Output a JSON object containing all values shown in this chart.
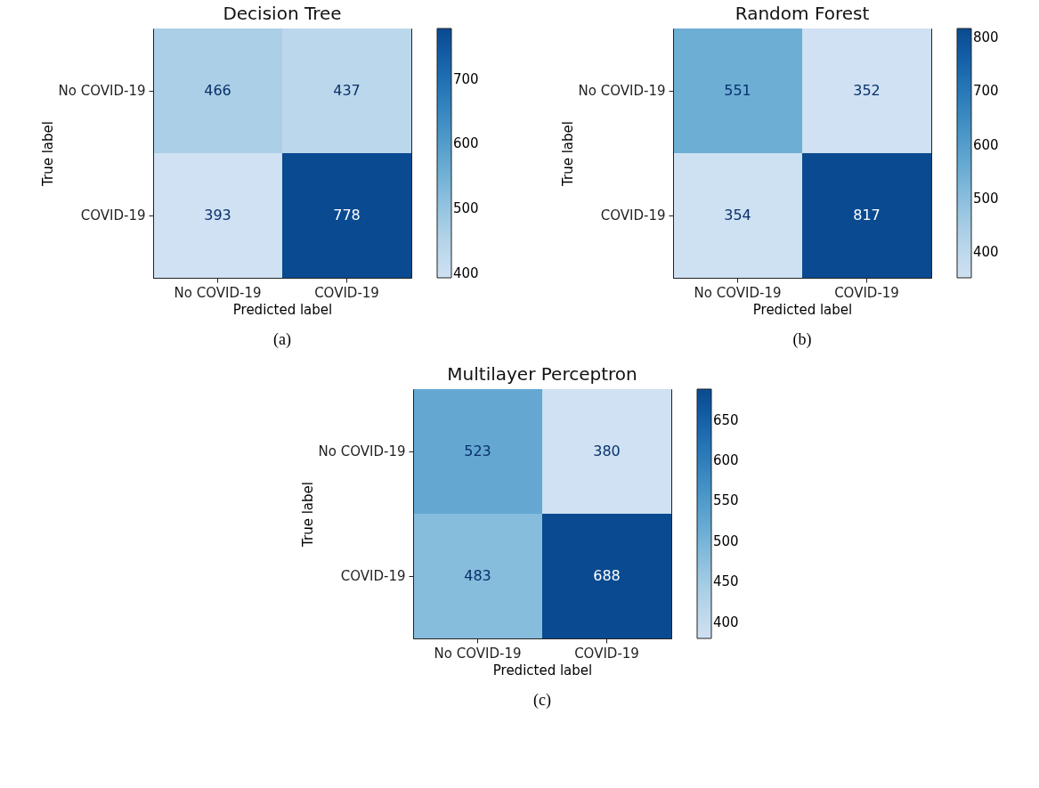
{
  "chart_data": [
    {
      "type": "heatmap",
      "title": "Decision Tree",
      "xlabel": "Predicted label",
      "ylabel": "True label",
      "categories": [
        "No COVID-19",
        "COVID-19"
      ],
      "y_categories": [
        "No COVID-19",
        "COVID-19"
      ],
      "cells": [
        [
          466,
          437
        ],
        [
          393,
          778
        ]
      ],
      "clim": [
        393,
        778
      ],
      "cticks": [
        400,
        500,
        600,
        700
      ],
      "data_labels": true,
      "annotations": [
        "(a)"
      ]
    },
    {
      "type": "heatmap",
      "title": "Random Forest",
      "xlabel": "Predicted label",
      "ylabel": "True label",
      "categories": [
        "No COVID-19",
        "COVID-19"
      ],
      "y_categories": [
        "No COVID-19",
        "COVID-19"
      ],
      "cells": [
        [
          551,
          352
        ],
        [
          354,
          817
        ]
      ],
      "clim": [
        352,
        817
      ],
      "cticks": [
        400,
        500,
        600,
        700,
        800
      ],
      "data_labels": true,
      "annotations": [
        "(b)"
      ]
    },
    {
      "type": "heatmap",
      "title": "Multilayer Perceptron",
      "xlabel": "Predicted label",
      "ylabel": "True label",
      "categories": [
        "No COVID-19",
        "COVID-19"
      ],
      "y_categories": [
        "No COVID-19",
        "COVID-19"
      ],
      "cells": [
        [
          523,
          380
        ],
        [
          483,
          688
        ]
      ],
      "clim": [
        380,
        688
      ],
      "cticks": [
        400,
        450,
        500,
        550,
        600,
        650
      ],
      "data_labels": true,
      "annotations": [
        "(c)"
      ]
    }
  ]
}
